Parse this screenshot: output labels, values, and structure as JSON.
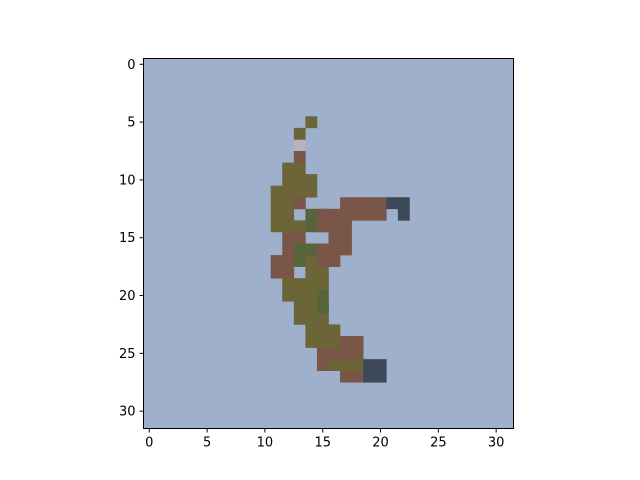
{
  "chart_data": {
    "type": "heatmap",
    "title": "",
    "xlabel": "",
    "ylabel": "",
    "width": 32,
    "height": 32,
    "xlim": [
      -0.5,
      31.5
    ],
    "ylim": [
      31.5,
      -0.5
    ],
    "x_ticks": [
      0,
      5,
      10,
      15,
      20,
      25,
      30
    ],
    "y_ticks": [
      0,
      5,
      10,
      15,
      20,
      25,
      30
    ],
    "grid": false,
    "legend": "none",
    "background_color": "#9eb0cc",
    "subject_colors": {
      "olive": "#6b6538",
      "brown": "#7a5648",
      "green": "#58643c",
      "dark": "#3d4858",
      "light": "#b6b2c4"
    }
  }
}
